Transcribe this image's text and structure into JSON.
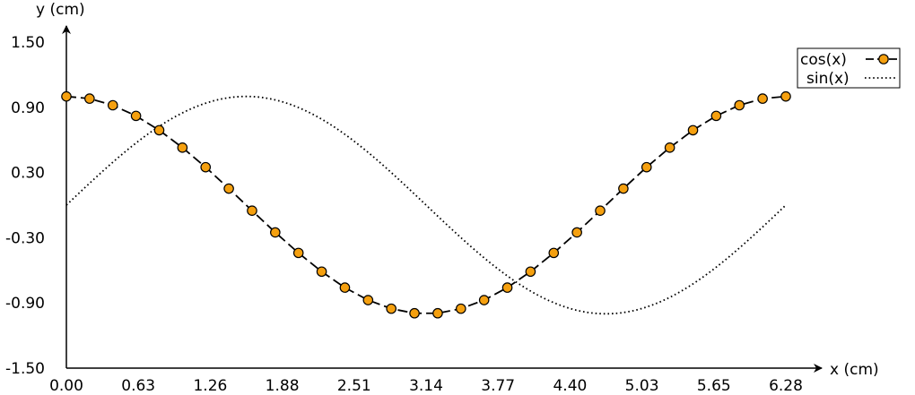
{
  "chart_data": {
    "type": "line",
    "title": "",
    "xlabel": "x (cm)",
    "ylabel": "y (cm)",
    "xlim": [
      0,
      6.2832
    ],
    "ylim": [
      -1.5,
      1.5
    ],
    "x_ticks": [
      "0.00",
      "0.63",
      "1.26",
      "1.88",
      "2.51",
      "3.14",
      "3.77",
      "4.40",
      "5.03",
      "5.65",
      "6.28"
    ],
    "y_ticks": [
      "-1.50",
      "-0.90",
      "-0.30",
      "0.30",
      "0.90",
      "1.50"
    ],
    "grid": false,
    "legend_position": "top-right",
    "series": [
      {
        "name": "cos(x)",
        "style": "dashed line with circle markers",
        "line_color": "#000000",
        "marker_color": "#f5a00f",
        "x": [
          0.0,
          0.2027,
          0.4054,
          0.608,
          0.8107,
          1.0134,
          1.2161,
          1.4188,
          1.6215,
          1.8241,
          2.0268,
          2.2295,
          2.4322,
          2.6349,
          2.8375,
          3.0402,
          3.2429,
          3.4456,
          3.6483,
          3.851,
          4.0536,
          4.2563,
          4.459,
          4.6617,
          4.8644,
          5.0671,
          5.2697,
          5.4724,
          5.6751,
          5.8778,
          6.0805,
          6.2832
        ],
        "y": [
          1.0,
          0.98,
          0.919,
          0.821,
          0.689,
          0.529,
          0.349,
          0.152,
          -0.051,
          -0.251,
          -0.44,
          -0.612,
          -0.759,
          -0.874,
          -0.953,
          -0.995,
          -0.995,
          -0.953,
          -0.874,
          -0.759,
          -0.612,
          -0.44,
          -0.251,
          -0.051,
          0.152,
          0.349,
          0.529,
          0.689,
          0.821,
          0.919,
          0.98,
          1.0
        ]
      },
      {
        "name": "sin(x)",
        "style": "dotted line",
        "line_color": "#000000",
        "function": "sin",
        "x_range": [
          0,
          6.2832
        ]
      }
    ]
  }
}
